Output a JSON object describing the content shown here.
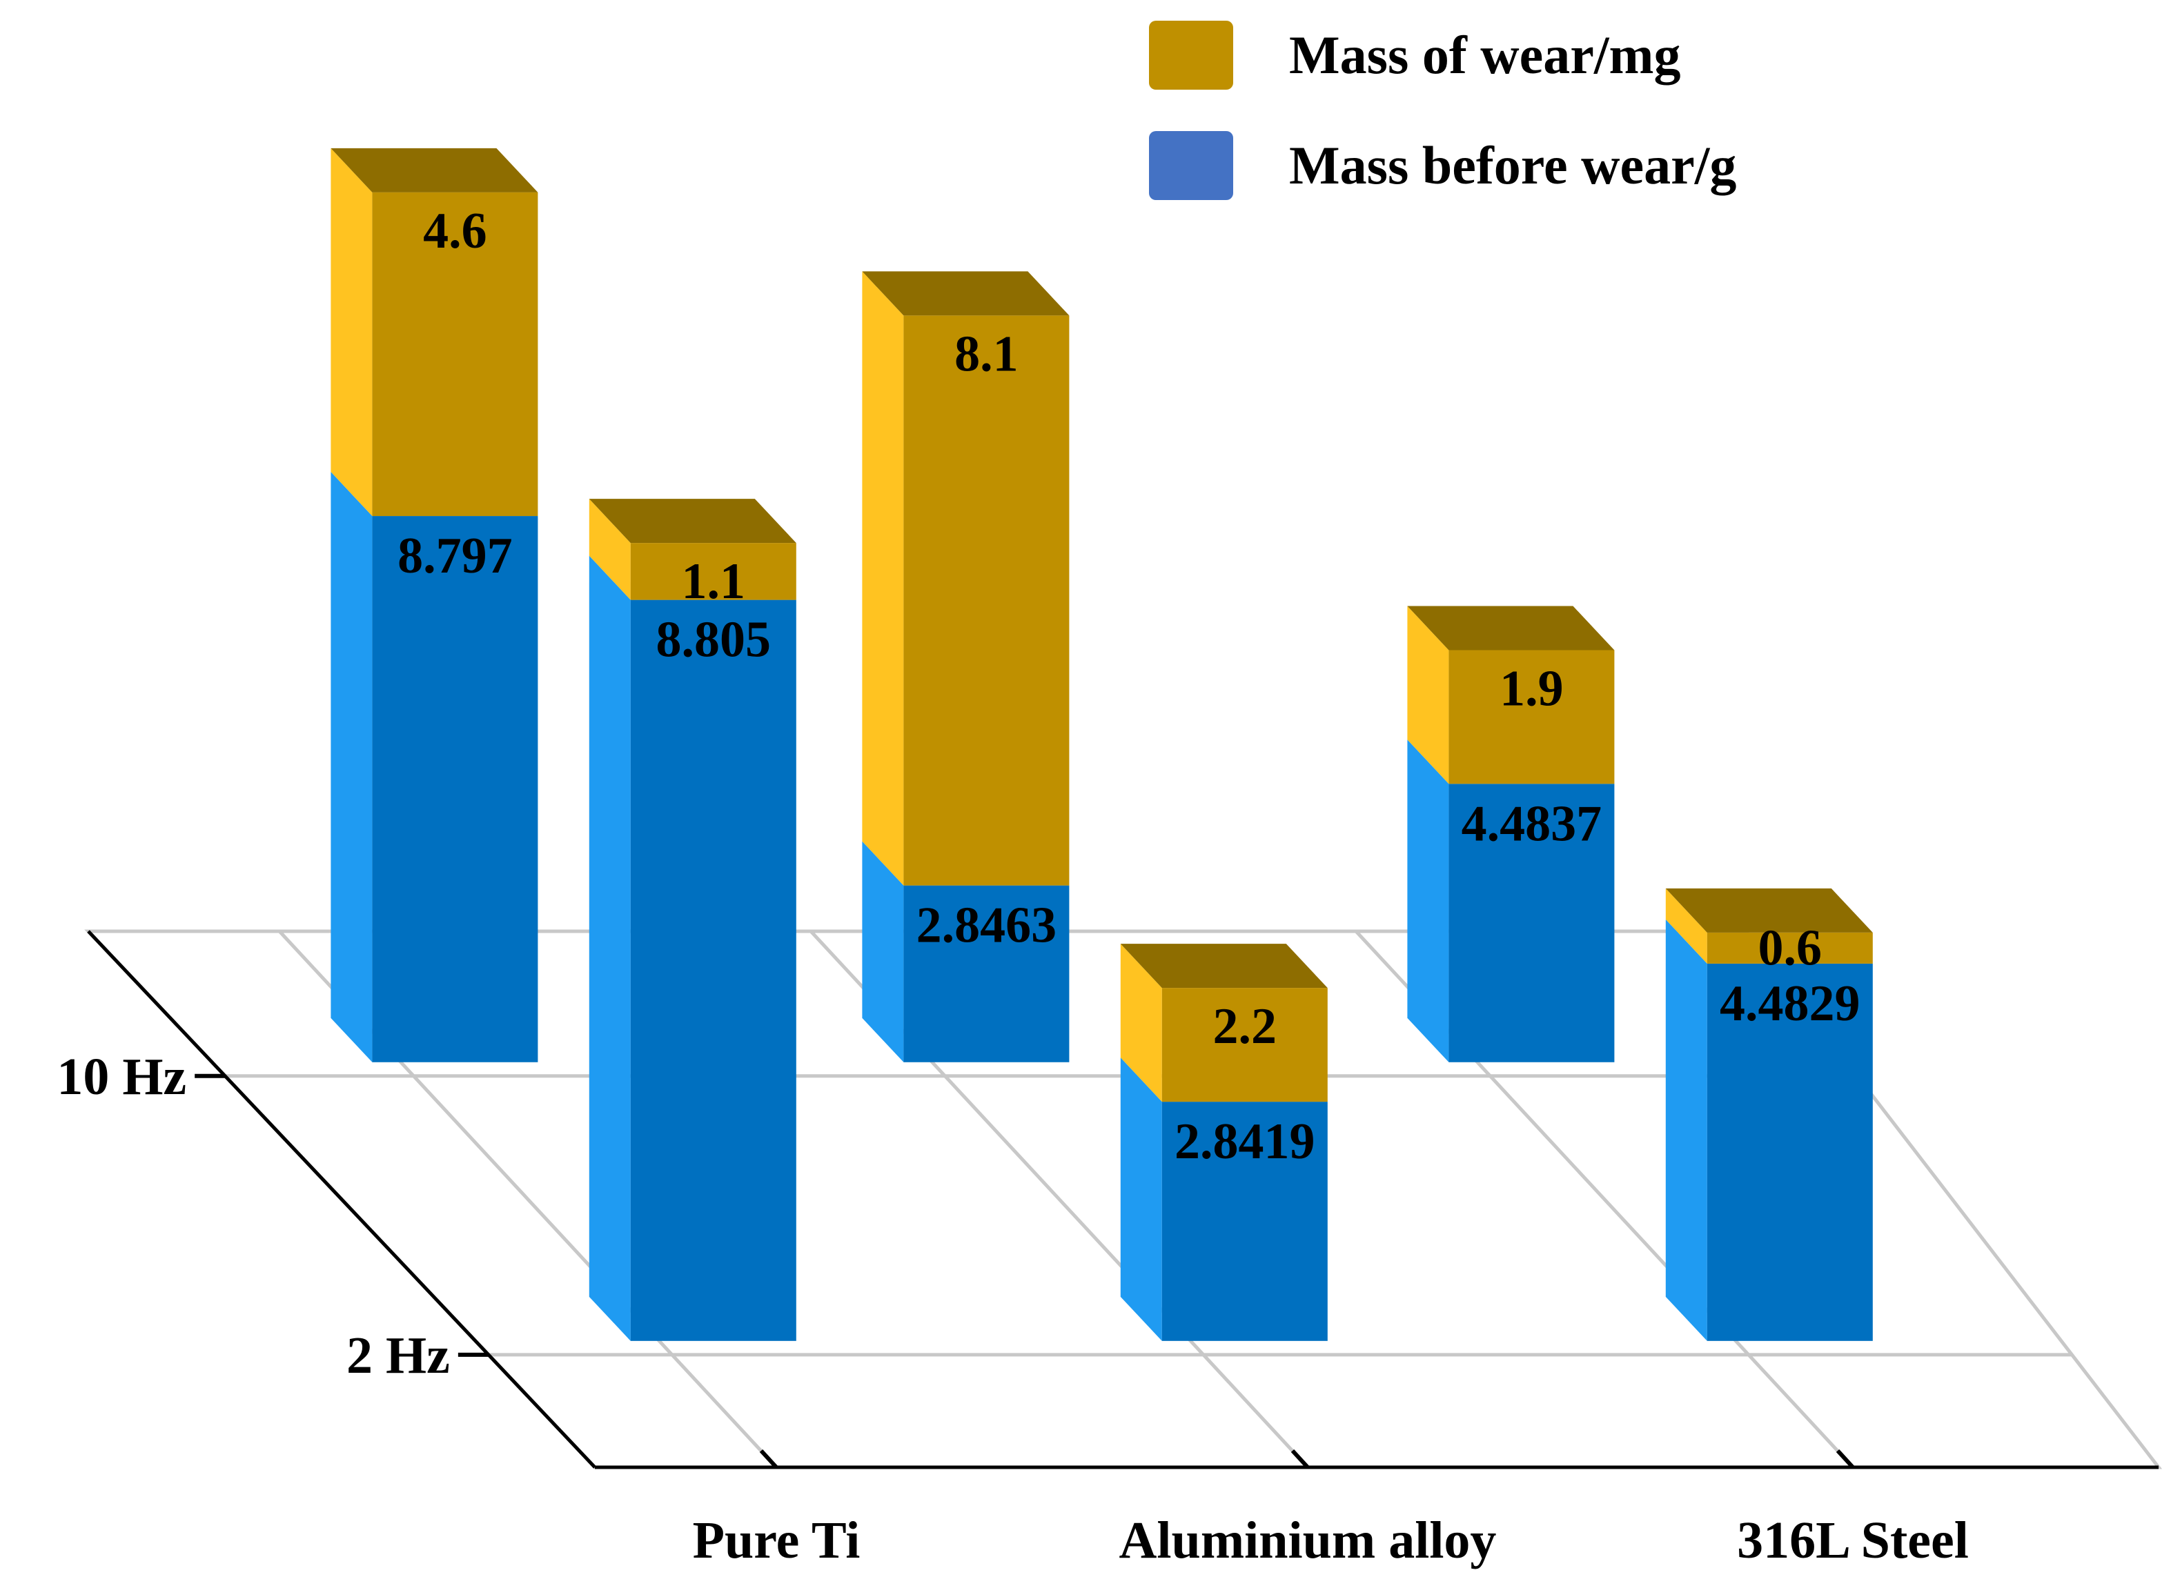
{
  "chart_data": {
    "type": "bar",
    "subtype": "3d-stacked",
    "categories": [
      "Pure Ti",
      "Aluminium alloy",
      "316L Steel"
    ],
    "frequencies": [
      "10 Hz",
      "2 Hz"
    ],
    "series": [
      {
        "name": "Mass before wear/g",
        "color": "#0070C0",
        "values": {
          "10 Hz": [
            8.797,
            2.8463,
            4.4837
          ],
          "2 Hz": [
            8.805,
            2.8419,
            4.4829
          ]
        },
        "labels": {
          "10 Hz": [
            "8.797",
            "2.8463",
            "4.4837"
          ],
          "2 Hz": [
            "8.805",
            "2.8419",
            "4.4829"
          ]
        }
      },
      {
        "name": "Mass of wear/mg",
        "color": "#BF9000",
        "values": {
          "10 Hz": [
            4.6,
            8.1,
            1.9
          ],
          "2 Hz": [
            1.1,
            2.2,
            0.6
          ]
        },
        "labels": {
          "10 Hz": [
            "4.6",
            "8.1",
            "1.9"
          ],
          "2 Hz": [
            "1.1",
            "2.2",
            "0.6"
          ]
        }
      }
    ],
    "legend": [
      "Mass of wear/mg",
      "Mass before wear/g"
    ],
    "legend_position": "top-right",
    "grid": true
  },
  "colors": {
    "blue_front": "#0070C0",
    "blue_side": "#1F9BF2",
    "gold_front": "#BF9000",
    "gold_side": "#FFC321",
    "gold_top": "#8E6D00",
    "legend_gold": "#BF9000",
    "legend_blue": "#4472C4",
    "grid": "#C8C8C8",
    "axis": "#000000"
  }
}
